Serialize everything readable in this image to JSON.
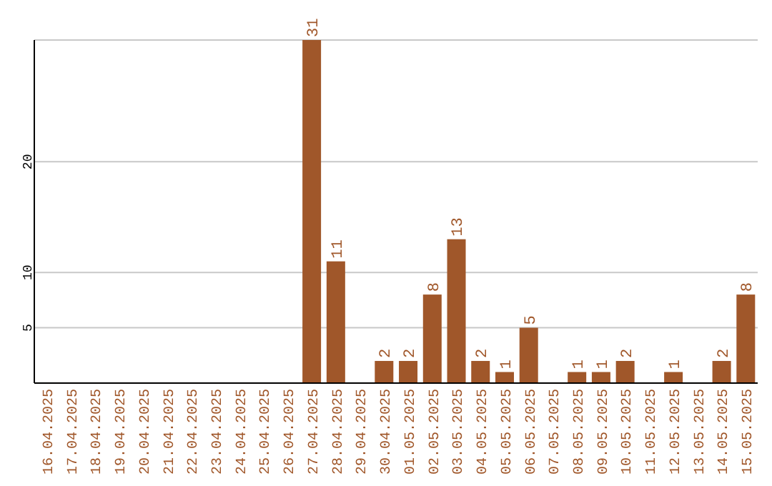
{
  "chart_data": {
    "type": "bar",
    "categories": [
      "16.04.2025",
      "17.04.2025",
      "18.04.2025",
      "19.04.2025",
      "20.04.2025",
      "21.04.2025",
      "22.04.2025",
      "23.04.2025",
      "24.04.2025",
      "25.04.2025",
      "26.04.2025",
      "27.04.2025",
      "28.04.2025",
      "29.04.2025",
      "30.04.2025",
      "01.05.2025",
      "02.05.2025",
      "03.05.2025",
      "04.05.2025",
      "05.05.2025",
      "06.05.2025",
      "07.05.2025",
      "08.05.2025",
      "09.05.2025",
      "10.05.2025",
      "11.05.2025",
      "12.05.2025",
      "13.05.2025",
      "14.05.2025",
      "15.05.2025"
    ],
    "values": [
      0,
      0,
      0,
      0,
      0,
      0,
      0,
      0,
      0,
      0,
      0,
      31,
      11,
      0,
      2,
      2,
      8,
      13,
      2,
      1,
      5,
      0,
      1,
      1,
      2,
      0,
      1,
      0,
      2,
      8
    ],
    "value_labels": [
      null,
      null,
      null,
      null,
      null,
      null,
      null,
      null,
      null,
      null,
      null,
      "31",
      "11",
      null,
      "2",
      "2",
      "8",
      "13",
      "2",
      "1",
      "5",
      null,
      "1",
      "1",
      "2",
      null,
      "1",
      null,
      "2",
      "8"
    ],
    "color": "#a0572a",
    "ylim": [
      0,
      31
    ],
    "yticks": [
      5,
      10,
      20
    ],
    "grid": "y"
  }
}
